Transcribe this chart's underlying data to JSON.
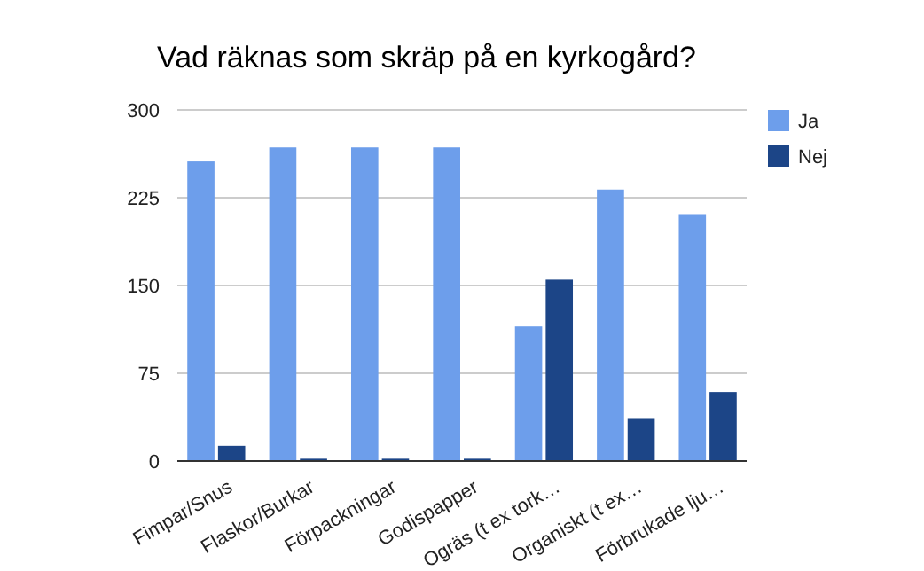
{
  "chart_data": {
    "type": "bar",
    "title": "Vad räknas som skräp på en kyrkogård?",
    "categories": [
      "Fimpar/Snus",
      "Flaskor/Burkar",
      "Förpackningar",
      "Godispapper",
      "Ogräs (t ex tork…",
      "Organiskt (t ex…",
      "Förbrukade lju…"
    ],
    "series": [
      {
        "name": "Ja",
        "color": "#6d9eeb",
        "values": [
          256,
          268,
          268,
          268,
          115,
          232,
          211
        ]
      },
      {
        "name": "Nej",
        "color": "#1c4587",
        "values": [
          13,
          2,
          2,
          2,
          155,
          36,
          59
        ]
      }
    ],
    "ylim": [
      0,
      300
    ],
    "yticks": [
      0,
      75,
      150,
      225,
      300
    ],
    "grid": "y",
    "legend": "right"
  }
}
